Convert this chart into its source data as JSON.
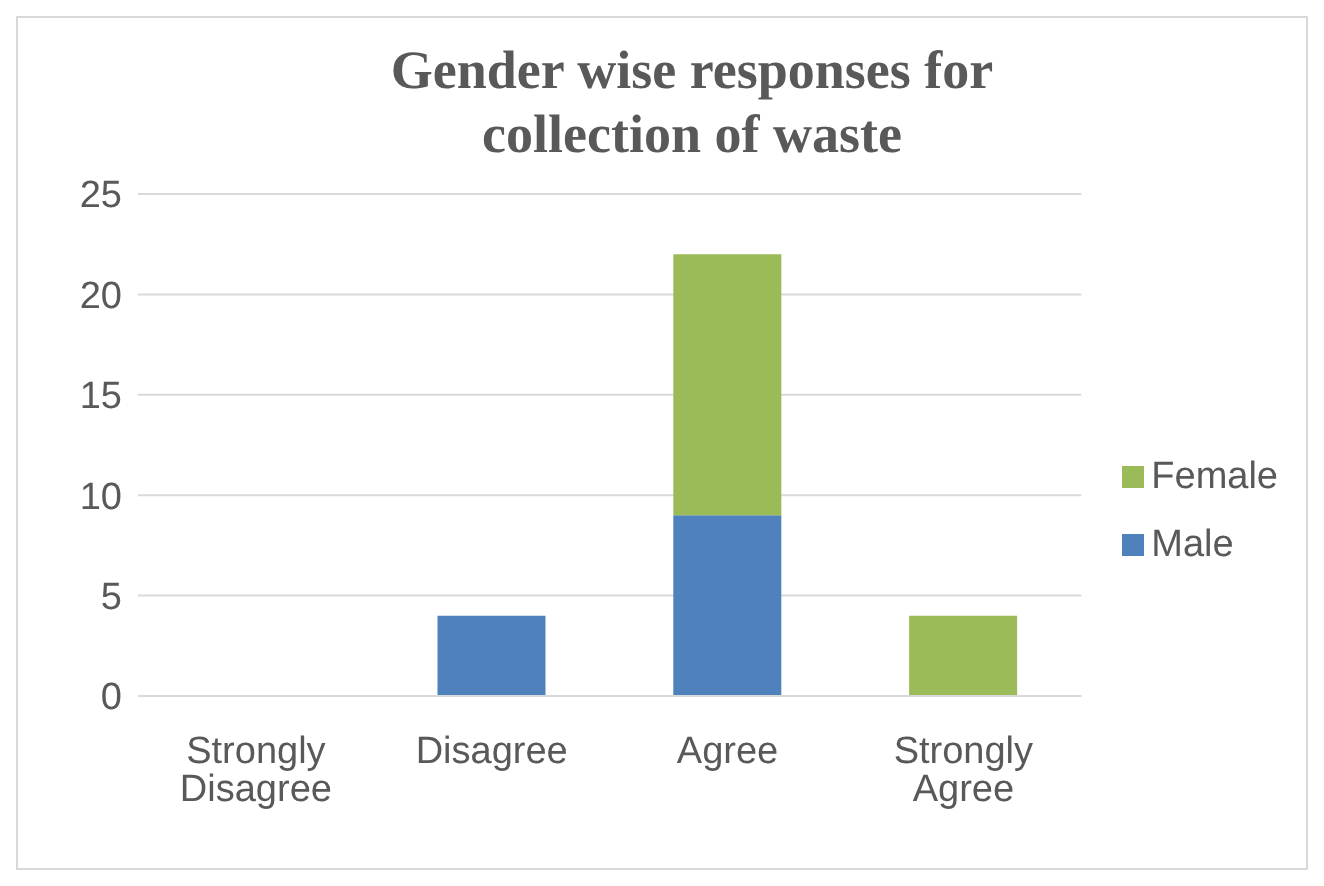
{
  "chart_data": {
    "type": "bar",
    "title": "Gender wise responses for collection of waste",
    "categories": [
      "Strongly Disagree",
      "Disagree",
      "Agree",
      "Strongly Agree"
    ],
    "stacked": true,
    "series": [
      {
        "name": "Male",
        "color": "#4f81bd",
        "values": [
          0,
          4,
          9,
          0
        ]
      },
      {
        "name": "Female",
        "color": "#9bbb59",
        "values": [
          0,
          0,
          13,
          4
        ]
      }
    ],
    "ylim": [
      0,
      25
    ],
    "yticks": [
      0,
      5,
      10,
      15,
      20,
      25
    ],
    "grid": "y",
    "legend": "right"
  }
}
